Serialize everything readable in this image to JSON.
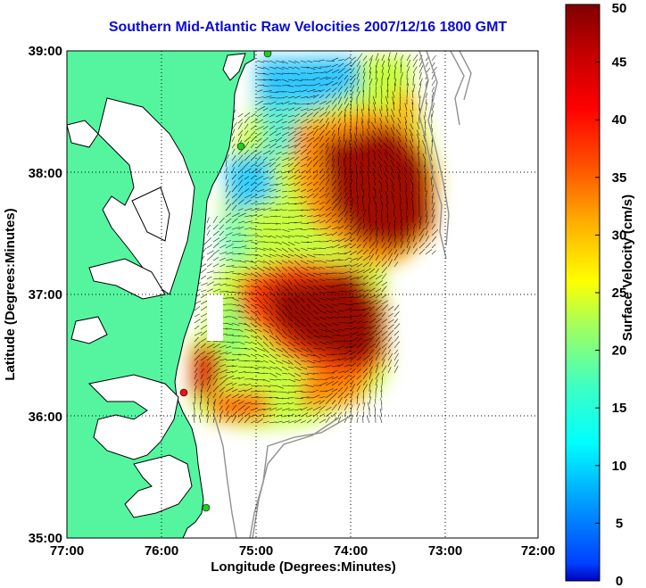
{
  "title": "Southern Mid-Atlantic Raw Velocities 2007/12/16 1800 GMT",
  "x_axis": {
    "label": "Longitude (Degrees:Minutes)",
    "ticks": [
      "77:00",
      "76:00",
      "75:00",
      "74:00",
      "73:00",
      "72:00"
    ]
  },
  "y_axis": {
    "label": "Latitude (Degrees:Minutes)",
    "ticks": [
      "39:00",
      "38:00",
      "37:00",
      "36:00",
      "35:00"
    ]
  },
  "colorbar": {
    "label": "Surface Velocity (cm/s)",
    "ticks": [
      "50",
      "45",
      "40",
      "35",
      "30",
      "25",
      "20",
      "15",
      "10",
      "5",
      "0"
    ],
    "range": [
      0,
      50
    ],
    "colormap": "jet"
  },
  "colors": {
    "land": "#55f5a0",
    "title": "#0a0ad8",
    "coastline": "#000000",
    "bathymetry": "#909090",
    "station_green": "#22cc22",
    "station_red": "#ee1111"
  },
  "map": {
    "lon_range": [
      -77,
      -72
    ],
    "lat_range": [
      35,
      39
    ],
    "grid": "dotted"
  }
}
